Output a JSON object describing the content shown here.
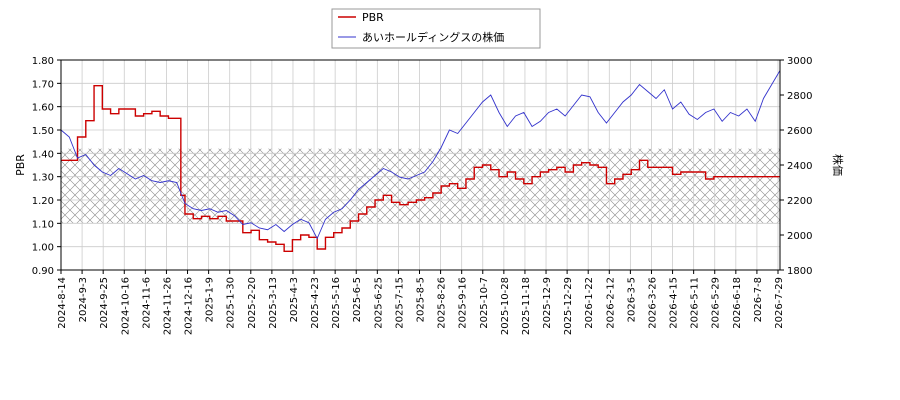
{
  "chart_data": {
    "type": "line",
    "legend": {
      "placement": "top-center",
      "items": [
        {
          "label": "PBR",
          "color": "#cc0000"
        },
        {
          "label": "あいホールディングスの株価",
          "color": "#3333cc"
        }
      ]
    },
    "left_axis": {
      "label": "PBR",
      "ylim": [
        0.9,
        1.8
      ],
      "ticks": [
        "0.90",
        "1.00",
        "1.10",
        "1.20",
        "1.30",
        "1.40",
        "1.50",
        "1.60",
        "1.70",
        "1.80"
      ]
    },
    "right_axis": {
      "label": "株価",
      "ylim": [
        1800,
        3000
      ],
      "ticks": [
        "1800",
        "2000",
        "2200",
        "2400",
        "2600",
        "2800",
        "3000"
      ]
    },
    "x_ticks": [
      "2024-8-14",
      "2024-9-3",
      "2024-9-25",
      "2024-10-16",
      "2024-11-6",
      "2024-11-26",
      "2024-12-16",
      "2025-1-9",
      "2025-1-30",
      "2025-2-20",
      "2025-3-13",
      "2025-4-3",
      "2025-4-23",
      "2025-5-16",
      "2025-6-5",
      "2025-6-25",
      "2025-7-15",
      "2025-8-5",
      "2025-8-26",
      "2025-9-16",
      "2025-10-7",
      "2025-10-28",
      "2025-11-18",
      "2025-12-9",
      "2025-12-29",
      "2026-1-22",
      "2026-2-12",
      "2026-3-5",
      "2026-3-26",
      "2026-4-15",
      "2026-5-11",
      "2026-5-29",
      "2026-6-18",
      "2026-7-8",
      "2026-7-29"
    ],
    "grid": true,
    "band": {
      "pbr_low": 1.1,
      "pbr_high": 1.42
    },
    "series": [
      {
        "name": "PBR",
        "axis": "left",
        "color": "#cc0000",
        "points": [
          [
            0,
            1.37
          ],
          [
            1,
            1.37
          ],
          [
            2,
            1.47
          ],
          [
            3,
            1.54
          ],
          [
            4,
            1.69
          ],
          [
            5,
            1.59
          ],
          [
            6,
            1.57
          ],
          [
            7,
            1.59
          ],
          [
            8,
            1.59
          ],
          [
            9,
            1.56
          ],
          [
            10,
            1.57
          ],
          [
            11,
            1.58
          ],
          [
            12,
            1.56
          ],
          [
            13,
            1.55
          ],
          [
            14,
            1.55
          ],
          [
            14.5,
            1.22
          ],
          [
            15,
            1.14
          ],
          [
            16,
            1.12
          ],
          [
            17,
            1.13
          ],
          [
            18,
            1.12
          ],
          [
            19,
            1.13
          ],
          [
            20,
            1.11
          ],
          [
            21,
            1.11
          ],
          [
            22,
            1.06
          ],
          [
            23,
            1.07
          ],
          [
            24,
            1.03
          ],
          [
            25,
            1.02
          ],
          [
            26,
            1.01
          ],
          [
            27,
            0.98
          ],
          [
            28,
            1.03
          ],
          [
            29,
            1.05
          ],
          [
            30,
            1.04
          ],
          [
            31,
            0.99
          ],
          [
            32,
            1.04
          ],
          [
            33,
            1.06
          ],
          [
            34,
            1.08
          ],
          [
            35,
            1.11
          ],
          [
            36,
            1.14
          ],
          [
            37,
            1.17
          ],
          [
            38,
            1.2
          ],
          [
            39,
            1.22
          ],
          [
            40,
            1.19
          ],
          [
            41,
            1.18
          ],
          [
            42,
            1.19
          ],
          [
            43,
            1.2
          ],
          [
            44,
            1.21
          ],
          [
            45,
            1.23
          ],
          [
            46,
            1.26
          ],
          [
            47,
            1.27
          ],
          [
            48,
            1.25
          ],
          [
            49,
            1.29
          ],
          [
            50,
            1.34
          ],
          [
            51,
            1.35
          ],
          [
            52,
            1.33
          ],
          [
            53,
            1.3
          ],
          [
            54,
            1.32
          ],
          [
            55,
            1.29
          ],
          [
            56,
            1.27
          ],
          [
            57,
            1.3
          ],
          [
            58,
            1.32
          ],
          [
            59,
            1.33
          ],
          [
            60,
            1.34
          ],
          [
            61,
            1.32
          ],
          [
            62,
            1.35
          ],
          [
            63,
            1.36
          ],
          [
            64,
            1.35
          ],
          [
            65,
            1.34
          ],
          [
            66,
            1.27
          ],
          [
            67,
            1.29
          ],
          [
            68,
            1.31
          ],
          [
            69,
            1.33
          ],
          [
            70,
            1.37
          ],
          [
            71,
            1.34
          ],
          [
            72,
            1.34
          ],
          [
            73,
            1.34
          ],
          [
            74,
            1.31
          ],
          [
            75,
            1.32
          ],
          [
            76,
            1.32
          ],
          [
            77,
            1.32
          ],
          [
            78,
            1.29
          ],
          [
            79,
            1.3
          ],
          [
            80,
            1.3
          ],
          [
            81,
            1.3
          ],
          [
            82,
            1.3
          ],
          [
            83,
            1.3
          ],
          [
            84,
            1.3
          ],
          [
            85,
            1.3
          ],
          [
            86,
            1.3
          ],
          [
            87,
            1.3
          ]
        ]
      },
      {
        "name": "あいホールディングスの株価",
        "axis": "right",
        "color": "#3333cc",
        "points": [
          [
            0,
            2600
          ],
          [
            1,
            2560
          ],
          [
            2,
            2440
          ],
          [
            3,
            2460
          ],
          [
            4,
            2400
          ],
          [
            5,
            2360
          ],
          [
            6,
            2340
          ],
          [
            7,
            2380
          ],
          [
            8,
            2350
          ],
          [
            9,
            2320
          ],
          [
            10,
            2340
          ],
          [
            11,
            2310
          ],
          [
            12,
            2300
          ],
          [
            13,
            2310
          ],
          [
            14,
            2300
          ],
          [
            15,
            2180
          ],
          [
            16,
            2150
          ],
          [
            17,
            2140
          ],
          [
            18,
            2150
          ],
          [
            19,
            2130
          ],
          [
            20,
            2140
          ],
          [
            21,
            2110
          ],
          [
            22,
            2060
          ],
          [
            23,
            2070
          ],
          [
            24,
            2040
          ],
          [
            25,
            2030
          ],
          [
            26,
            2060
          ],
          [
            27,
            2020
          ],
          [
            28,
            2060
          ],
          [
            29,
            2090
          ],
          [
            30,
            2070
          ],
          [
            31,
            1980
          ],
          [
            32,
            2090
          ],
          [
            33,
            2130
          ],
          [
            34,
            2150
          ],
          [
            35,
            2200
          ],
          [
            36,
            2260
          ],
          [
            37,
            2300
          ],
          [
            38,
            2340
          ],
          [
            39,
            2380
          ],
          [
            40,
            2360
          ],
          [
            41,
            2330
          ],
          [
            42,
            2320
          ],
          [
            43,
            2340
          ],
          [
            44,
            2360
          ],
          [
            45,
            2420
          ],
          [
            46,
            2500
          ],
          [
            47,
            2600
          ],
          [
            48,
            2580
          ],
          [
            49,
            2640
          ],
          [
            50,
            2700
          ],
          [
            51,
            2760
          ],
          [
            52,
            2800
          ],
          [
            53,
            2700
          ],
          [
            54,
            2620
          ],
          [
            55,
            2680
          ],
          [
            56,
            2700
          ],
          [
            57,
            2620
          ],
          [
            58,
            2650
          ],
          [
            59,
            2700
          ],
          [
            60,
            2720
          ],
          [
            61,
            2680
          ],
          [
            62,
            2740
          ],
          [
            63,
            2800
          ],
          [
            64,
            2790
          ],
          [
            65,
            2700
          ],
          [
            66,
            2640
          ],
          [
            67,
            2700
          ],
          [
            68,
            2760
          ],
          [
            69,
            2800
          ],
          [
            70,
            2860
          ],
          [
            71,
            2820
          ],
          [
            72,
            2780
          ],
          [
            73,
            2830
          ],
          [
            74,
            2720
          ],
          [
            75,
            2760
          ],
          [
            76,
            2690
          ],
          [
            77,
            2660
          ],
          [
            78,
            2700
          ],
          [
            79,
            2720
          ],
          [
            80,
            2650
          ],
          [
            81,
            2700
          ],
          [
            82,
            2680
          ],
          [
            83,
            2720
          ],
          [
            84,
            2650
          ],
          [
            85,
            2780
          ],
          [
            86,
            2860
          ],
          [
            87,
            2940
          ]
        ]
      }
    ]
  }
}
